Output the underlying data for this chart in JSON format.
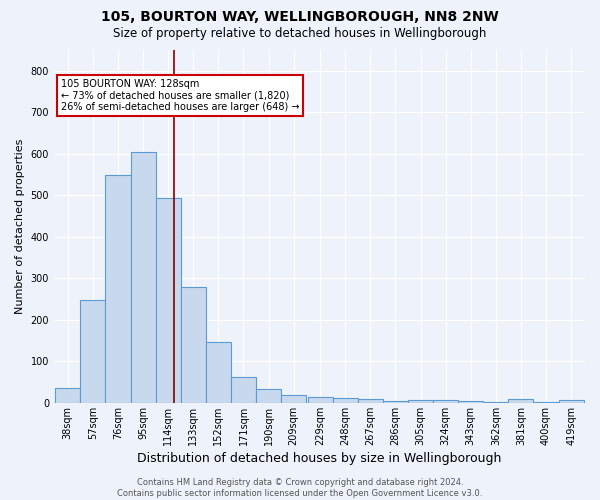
{
  "title1": "105, BOURTON WAY, WELLINGBOROUGH, NN8 2NW",
  "title2": "Size of property relative to detached houses in Wellingborough",
  "xlabel": "Distribution of detached houses by size in Wellingborough",
  "ylabel": "Number of detached properties",
  "bar_labels": [
    "38sqm",
    "57sqm",
    "76sqm",
    "95sqm",
    "114sqm",
    "133sqm",
    "152sqm",
    "171sqm",
    "190sqm",
    "209sqm",
    "229sqm",
    "248sqm",
    "267sqm",
    "286sqm",
    "305sqm",
    "324sqm",
    "343sqm",
    "362sqm",
    "381sqm",
    "400sqm",
    "419sqm"
  ],
  "bar_values": [
    35,
    248,
    550,
    605,
    493,
    278,
    147,
    63,
    33,
    20,
    15,
    12,
    9,
    5,
    8,
    8,
    5,
    1,
    10,
    3,
    7
  ],
  "bar_color_fill": "#c8d9ed",
  "bar_color_edge": "#5b9bd5",
  "bin_width": 19,
  "vline_x": 128,
  "vline_color": "#8b0000",
  "annotation_text": "105 BOURTON WAY: 128sqm\n← 73% of detached houses are smaller (1,820)\n26% of semi-detached houses are larger (648) →",
  "annotation_box_color": "white",
  "annotation_box_edge": "#cc0000",
  "background_color": "#eef2fa",
  "grid_color": "white",
  "footer": "Contains HM Land Registry data © Crown copyright and database right 2024.\nContains public sector information licensed under the Open Government Licence v3.0.",
  "ylim": [
    0,
    850
  ],
  "yticks": [
    0,
    100,
    200,
    300,
    400,
    500,
    600,
    700,
    800
  ],
  "title1_fontsize": 10,
  "title2_fontsize": 8.5,
  "xlabel_fontsize": 9,
  "ylabel_fontsize": 8,
  "tick_fontsize": 7,
  "footer_fontsize": 6,
  "footer_color": "#555555"
}
